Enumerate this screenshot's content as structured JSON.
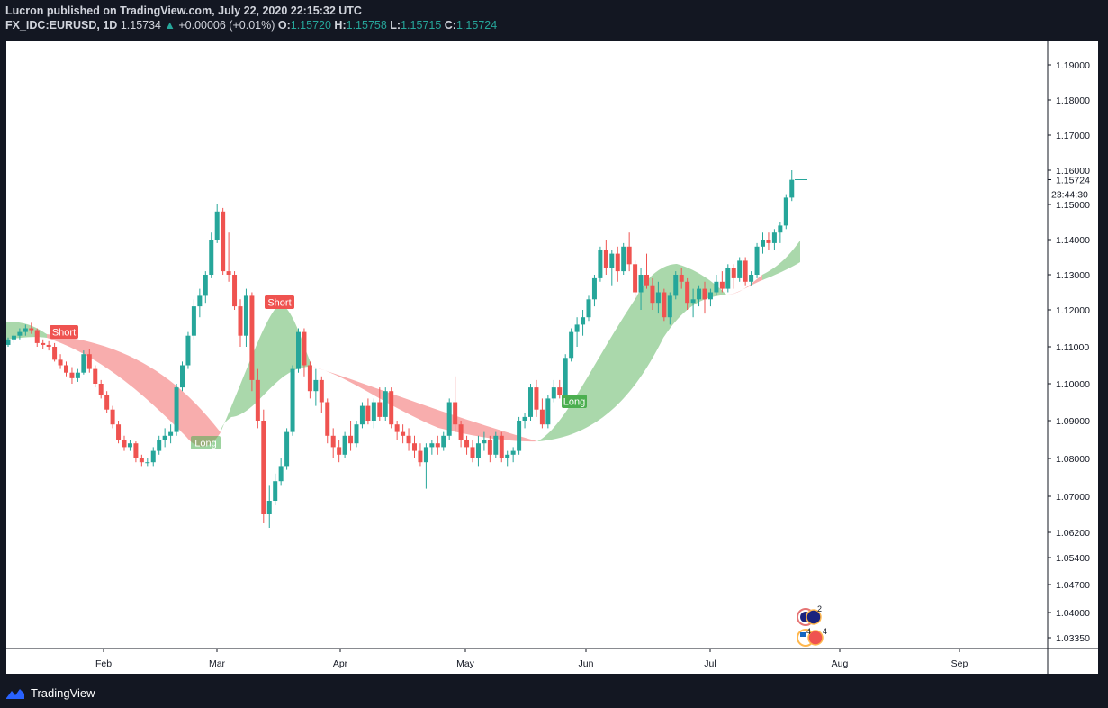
{
  "header": {
    "publisher_line": "Lucron published on TradingView.com, July 22, 2020 22:15:32 UTC",
    "symbol": "FX_IDC:EURUSD, 1D",
    "last": "1.15734",
    "change": "+0.00006 (+0.01%)",
    "o_label": "O:",
    "o_value": "1.15720",
    "h_label": "H:",
    "h_value": "1.15758",
    "l_label": "L:",
    "l_value": "1.15715",
    "c_label": "C:",
    "c_value": "1.15724"
  },
  "footer": {
    "brand": "TradingView"
  },
  "price_scale": {
    "last_price_label": "1.15724",
    "countdown_label": "23:44:30"
  },
  "colors": {
    "up": "#26a69a",
    "down": "#ef5350",
    "long_band": "#a5d6a7",
    "short_band": "#f8a9a9",
    "long_label": "#4caf50",
    "short_label": "#ef5350"
  },
  "chart_data": {
    "type": "candlestick",
    "symbol": "FX_IDC:EURUSD",
    "timeframe": "1D",
    "y_ticks": [
      "1.19000",
      "1.18000",
      "1.17000",
      "1.16000",
      "1.15000",
      "1.14000",
      "1.13000",
      "1.12000",
      "1.11000",
      "1.10000",
      "1.09000",
      "1.08000",
      "1.07000",
      "1.06200",
      "1.05400",
      "1.04700",
      "1.04000",
      "1.03350"
    ],
    "x_ticks": [
      "Feb",
      "Mar",
      "Apr",
      "May",
      "Jun",
      "Jul",
      "Aug",
      "Sep"
    ],
    "candles": [
      [
        1.1105,
        1.1125,
        1.11,
        1.112
      ],
      [
        1.112,
        1.1135,
        1.111,
        1.113
      ],
      [
        1.113,
        1.115,
        1.112,
        1.114
      ],
      [
        1.114,
        1.116,
        1.113,
        1.115
      ],
      [
        1.115,
        1.1165,
        1.1135,
        1.1145
      ],
      [
        1.1145,
        1.115,
        1.11,
        1.111
      ],
      [
        1.111,
        1.112,
        1.1095,
        1.1105
      ],
      [
        1.1105,
        1.1115,
        1.109,
        1.11
      ],
      [
        1.11,
        1.111,
        1.106,
        1.1065
      ],
      [
        1.1065,
        1.108,
        1.104,
        1.105
      ],
      [
        1.105,
        1.106,
        1.102,
        1.103
      ],
      [
        1.103,
        1.1045,
        1.1,
        1.1015
      ],
      [
        1.1015,
        1.104,
        1.1005,
        1.103
      ],
      [
        1.103,
        1.109,
        1.1025,
        1.108
      ],
      [
        1.108,
        1.1095,
        1.103,
        1.104
      ],
      [
        1.104,
        1.105,
        1.099,
        1.1
      ],
      [
        1.1,
        1.101,
        1.096,
        1.097
      ],
      [
        1.097,
        1.098,
        1.092,
        1.093
      ],
      [
        1.093,
        1.094,
        1.088,
        1.089
      ],
      [
        1.089,
        1.09,
        1.084,
        1.085
      ],
      [
        1.085,
        1.086,
        1.082,
        1.083
      ],
      [
        1.083,
        1.085,
        1.082,
        1.084
      ],
      [
        1.084,
        1.0845,
        1.079,
        1.08
      ],
      [
        1.08,
        1.081,
        1.078,
        1.079
      ],
      [
        1.079,
        1.08,
        1.078,
        1.079
      ],
      [
        1.079,
        1.083,
        1.078,
        1.082
      ],
      [
        1.082,
        1.086,
        1.081,
        1.085
      ],
      [
        1.085,
        1.088,
        1.083,
        1.086
      ],
      [
        1.086,
        1.089,
        1.084,
        1.087
      ],
      [
        1.087,
        1.1,
        1.086,
        1.099
      ],
      [
        1.099,
        1.106,
        1.098,
        1.105
      ],
      [
        1.105,
        1.114,
        1.104,
        1.113
      ],
      [
        1.113,
        1.123,
        1.112,
        1.121
      ],
      [
        1.121,
        1.126,
        1.118,
        1.124
      ],
      [
        1.124,
        1.131,
        1.122,
        1.13
      ],
      [
        1.13,
        1.142,
        1.129,
        1.14
      ],
      [
        1.14,
        1.15,
        1.139,
        1.148
      ],
      [
        1.148,
        1.149,
        1.13,
        1.131
      ],
      [
        1.131,
        1.142,
        1.128,
        1.13
      ],
      [
        1.13,
        1.131,
        1.12,
        1.121
      ],
      [
        1.121,
        1.123,
        1.11,
        1.113
      ],
      [
        1.113,
        1.126,
        1.11,
        1.124
      ],
      [
        1.124,
        1.125,
        1.098,
        1.101
      ],
      [
        1.101,
        1.104,
        1.088,
        1.09
      ],
      [
        1.09,
        1.093,
        1.064,
        1.066
      ],
      [
        1.066,
        1.073,
        1.063,
        1.069
      ],
      [
        1.069,
        1.076,
        1.068,
        1.074
      ],
      [
        1.074,
        1.08,
        1.073,
        1.078
      ],
      [
        1.078,
        1.088,
        1.077,
        1.087
      ],
      [
        1.087,
        1.105,
        1.086,
        1.104
      ],
      [
        1.104,
        1.115,
        1.103,
        1.114
      ],
      [
        1.114,
        1.115,
        1.102,
        1.105
      ],
      [
        1.105,
        1.106,
        1.096,
        1.098
      ],
      [
        1.098,
        1.104,
        1.094,
        1.101
      ],
      [
        1.101,
        1.102,
        1.092,
        1.095
      ],
      [
        1.095,
        1.096,
        1.084,
        1.086
      ],
      [
        1.086,
        1.088,
        1.08,
        1.083
      ],
      [
        1.083,
        1.085,
        1.079,
        1.081
      ],
      [
        1.081,
        1.087,
        1.08,
        1.086
      ],
      [
        1.086,
        1.09,
        1.082,
        1.084
      ],
      [
        1.084,
        1.09,
        1.083,
        1.089
      ],
      [
        1.089,
        1.095,
        1.088,
        1.094
      ],
      [
        1.094,
        1.096,
        1.089,
        1.09
      ],
      [
        1.09,
        1.096,
        1.088,
        1.095
      ],
      [
        1.095,
        1.099,
        1.09,
        1.091
      ],
      [
        1.091,
        1.099,
        1.09,
        1.098
      ],
      [
        1.098,
        1.099,
        1.088,
        1.089
      ],
      [
        1.089,
        1.09,
        1.085,
        1.087
      ],
      [
        1.087,
        1.089,
        1.084,
        1.086
      ],
      [
        1.086,
        1.088,
        1.082,
        1.084
      ],
      [
        1.084,
        1.086,
        1.08,
        1.082
      ],
      [
        1.082,
        1.084,
        1.078,
        1.079
      ],
      [
        1.079,
        1.084,
        1.072,
        1.083
      ],
      [
        1.083,
        1.085,
        1.081,
        1.084
      ],
      [
        1.084,
        1.086,
        1.081,
        1.083
      ],
      [
        1.083,
        1.087,
        1.082,
        1.086
      ],
      [
        1.086,
        1.096,
        1.085,
        1.095
      ],
      [
        1.095,
        1.102,
        1.087,
        1.089
      ],
      [
        1.089,
        1.09,
        1.083,
        1.085
      ],
      [
        1.085,
        1.086,
        1.081,
        1.083
      ],
      [
        1.083,
        1.085,
        1.079,
        1.08
      ],
      [
        1.08,
        1.086,
        1.078,
        1.084
      ],
      [
        1.084,
        1.087,
        1.082,
        1.085
      ],
      [
        1.085,
        1.086,
        1.079,
        1.081
      ],
      [
        1.081,
        1.087,
        1.08,
        1.086
      ],
      [
        1.086,
        1.087,
        1.079,
        1.08
      ],
      [
        1.08,
        1.082,
        1.078,
        1.081
      ],
      [
        1.081,
        1.083,
        1.079,
        1.082
      ],
      [
        1.082,
        1.091,
        1.081,
        1.09
      ],
      [
        1.09,
        1.092,
        1.088,
        1.091
      ],
      [
        1.091,
        1.1,
        1.09,
        1.099
      ],
      [
        1.099,
        1.101,
        1.091,
        1.093
      ],
      [
        1.093,
        1.096,
        1.088,
        1.089
      ],
      [
        1.089,
        1.097,
        1.088,
        1.096
      ],
      [
        1.096,
        1.101,
        1.095,
        1.099
      ],
      [
        1.099,
        1.101,
        1.096,
        1.097
      ],
      [
        1.097,
        1.108,
        1.096,
        1.107
      ],
      [
        1.107,
        1.115,
        1.106,
        1.114
      ],
      [
        1.114,
        1.118,
        1.11,
        1.116
      ],
      [
        1.116,
        1.12,
        1.113,
        1.118
      ],
      [
        1.118,
        1.124,
        1.117,
        1.123
      ],
      [
        1.123,
        1.13,
        1.121,
        1.129
      ],
      [
        1.129,
        1.138,
        1.128,
        1.137
      ],
      [
        1.137,
        1.14,
        1.13,
        1.132
      ],
      [
        1.132,
        1.137,
        1.127,
        1.136
      ],
      [
        1.136,
        1.138,
        1.128,
        1.131
      ],
      [
        1.131,
        1.139,
        1.13,
        1.138
      ],
      [
        1.138,
        1.142,
        1.131,
        1.133
      ],
      [
        1.133,
        1.134,
        1.123,
        1.125
      ],
      [
        1.125,
        1.132,
        1.12,
        1.13
      ],
      [
        1.13,
        1.136,
        1.126,
        1.127
      ],
      [
        1.127,
        1.129,
        1.12,
        1.122
      ],
      [
        1.122,
        1.128,
        1.119,
        1.125
      ],
      [
        1.125,
        1.126,
        1.117,
        1.118
      ],
      [
        1.118,
        1.125,
        1.116,
        1.124
      ],
      [
        1.124,
        1.131,
        1.123,
        1.13
      ],
      [
        1.13,
        1.132,
        1.126,
        1.128
      ],
      [
        1.128,
        1.129,
        1.12,
        1.122
      ],
      [
        1.122,
        1.126,
        1.118,
        1.123
      ],
      [
        1.123,
        1.127,
        1.121,
        1.126
      ],
      [
        1.126,
        1.128,
        1.119,
        1.123
      ],
      [
        1.123,
        1.126,
        1.121,
        1.125
      ],
      [
        1.125,
        1.13,
        1.124,
        1.128
      ],
      [
        1.128,
        1.131,
        1.125,
        1.126
      ],
      [
        1.126,
        1.133,
        1.125,
        1.132
      ],
      [
        1.132,
        1.133,
        1.126,
        1.129
      ],
      [
        1.129,
        1.135,
        1.128,
        1.134
      ],
      [
        1.134,
        1.135,
        1.127,
        1.128
      ],
      [
        1.128,
        1.131,
        1.127,
        1.13
      ],
      [
        1.13,
        1.139,
        1.129,
        1.138
      ],
      [
        1.138,
        1.142,
        1.136,
        1.14
      ],
      [
        1.14,
        1.142,
        1.137,
        1.139
      ],
      [
        1.139,
        1.143,
        1.137,
        1.142
      ],
      [
        1.142,
        1.145,
        1.139,
        1.144
      ],
      [
        1.144,
        1.153,
        1.143,
        1.152
      ],
      [
        1.152,
        1.16,
        1.151,
        1.1572
      ]
    ],
    "signals": [
      {
        "label": "Short",
        "type": "short"
      },
      {
        "label": "Long",
        "type": "long"
      },
      {
        "label": "Short",
        "type": "short"
      },
      {
        "label": "Long",
        "type": "long"
      }
    ]
  }
}
